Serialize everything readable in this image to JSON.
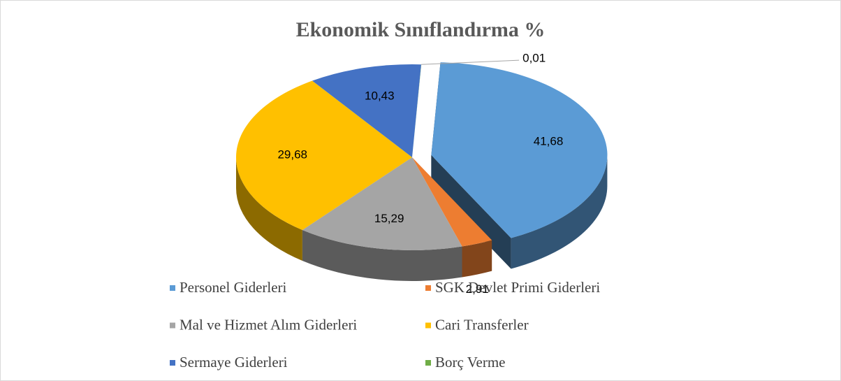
{
  "chart_data": {
    "type": "pie3d",
    "title": "Ekonomik Sınıflandırma %",
    "categories": [
      "Personel Giderleri",
      "SGK Devlet Primi Giderleri",
      "Mal ve Hizmet Alım Giderleri",
      "Cari Transferler",
      "Sermaye Giderleri",
      "Borç Verme"
    ],
    "values": [
      41.68,
      2.91,
      15.29,
      29.68,
      10.43,
      0.01
    ],
    "value_labels": [
      "41,68",
      "2,91",
      "15,29",
      "29,68",
      "10,43",
      "0,01"
    ],
    "colors": [
      "#5b9bd5",
      "#ed7d31",
      "#a5a5a5",
      "#ffc000",
      "#4472c4",
      "#70ad47"
    ],
    "legend": "bottom"
  }
}
